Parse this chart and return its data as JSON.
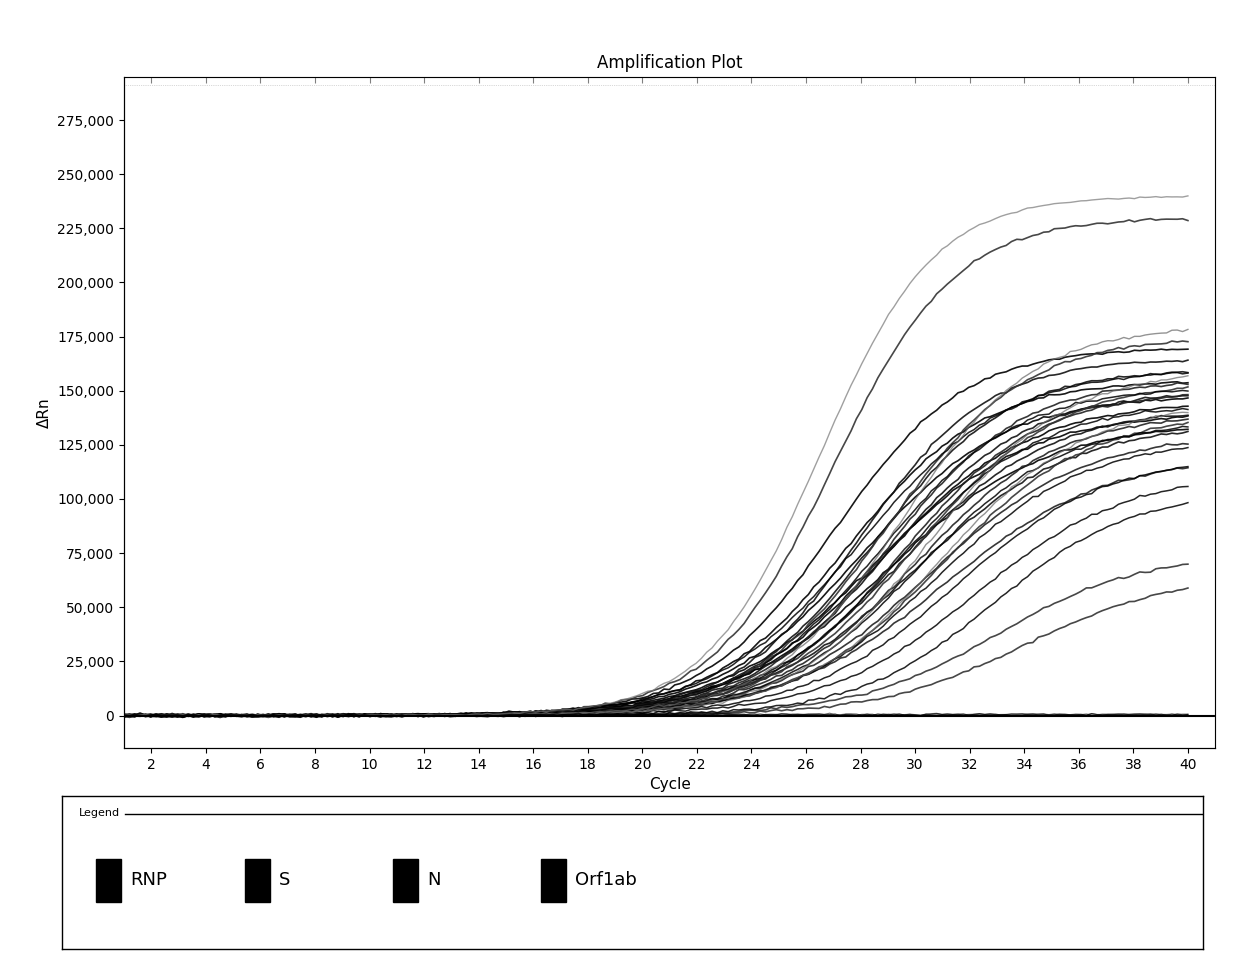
{
  "title": "Amplification Plot",
  "xlabel": "Cycle",
  "ylabel": "ΔRn",
  "xlim": [
    1,
    41
  ],
  "ylim": [
    -15000,
    295000
  ],
  "xticks": [
    2,
    4,
    6,
    8,
    10,
    12,
    14,
    16,
    18,
    20,
    22,
    24,
    26,
    28,
    30,
    32,
    34,
    36,
    38,
    40
  ],
  "yticks": [
    0,
    25000,
    50000,
    75000,
    100000,
    125000,
    150000,
    175000,
    200000,
    225000,
    250000,
    275000
  ],
  "ytick_labels": [
    "0",
    "25,000",
    "50,000",
    "75,000",
    "100,000",
    "125,000",
    "150,000",
    "175,000",
    "200,000",
    "225,000",
    "250,000",
    "275,000"
  ],
  "background_color": "#ffffff",
  "plot_bg_color": "#ffffff",
  "legend_items": [
    "RNP",
    "S",
    "N",
    "Orf1ab"
  ],
  "title_fontsize": 12,
  "axis_label_fontsize": 11,
  "tick_fontsize": 10
}
